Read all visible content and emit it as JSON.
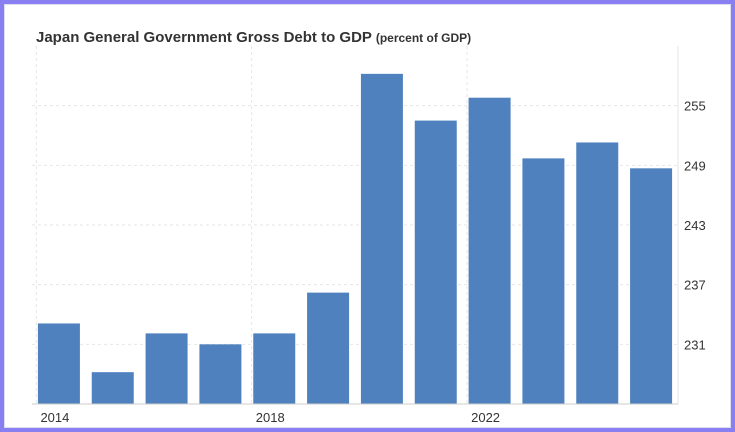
{
  "chart_data": {
    "type": "bar",
    "title": "Japan General Government Gross Debt to GDP",
    "subtitle": "(percent of GDP)",
    "categories": [
      "2014",
      "2015",
      "2016",
      "2017",
      "2018",
      "2019",
      "2020",
      "2021",
      "2022",
      "2023",
      "2024",
      "2025"
    ],
    "values": [
      233.1,
      228.2,
      232.1,
      231.0,
      232.1,
      236.2,
      258.2,
      253.5,
      255.8,
      249.7,
      251.3,
      248.7
    ],
    "x_tick_labels": [
      "2014",
      "2018",
      "2022"
    ],
    "y_ticks": [
      231,
      237,
      243,
      249,
      255
    ],
    "ylim": [
      225,
      261
    ],
    "ylabel_position": "right",
    "grid": true,
    "bar_color": "#4e81bd"
  }
}
